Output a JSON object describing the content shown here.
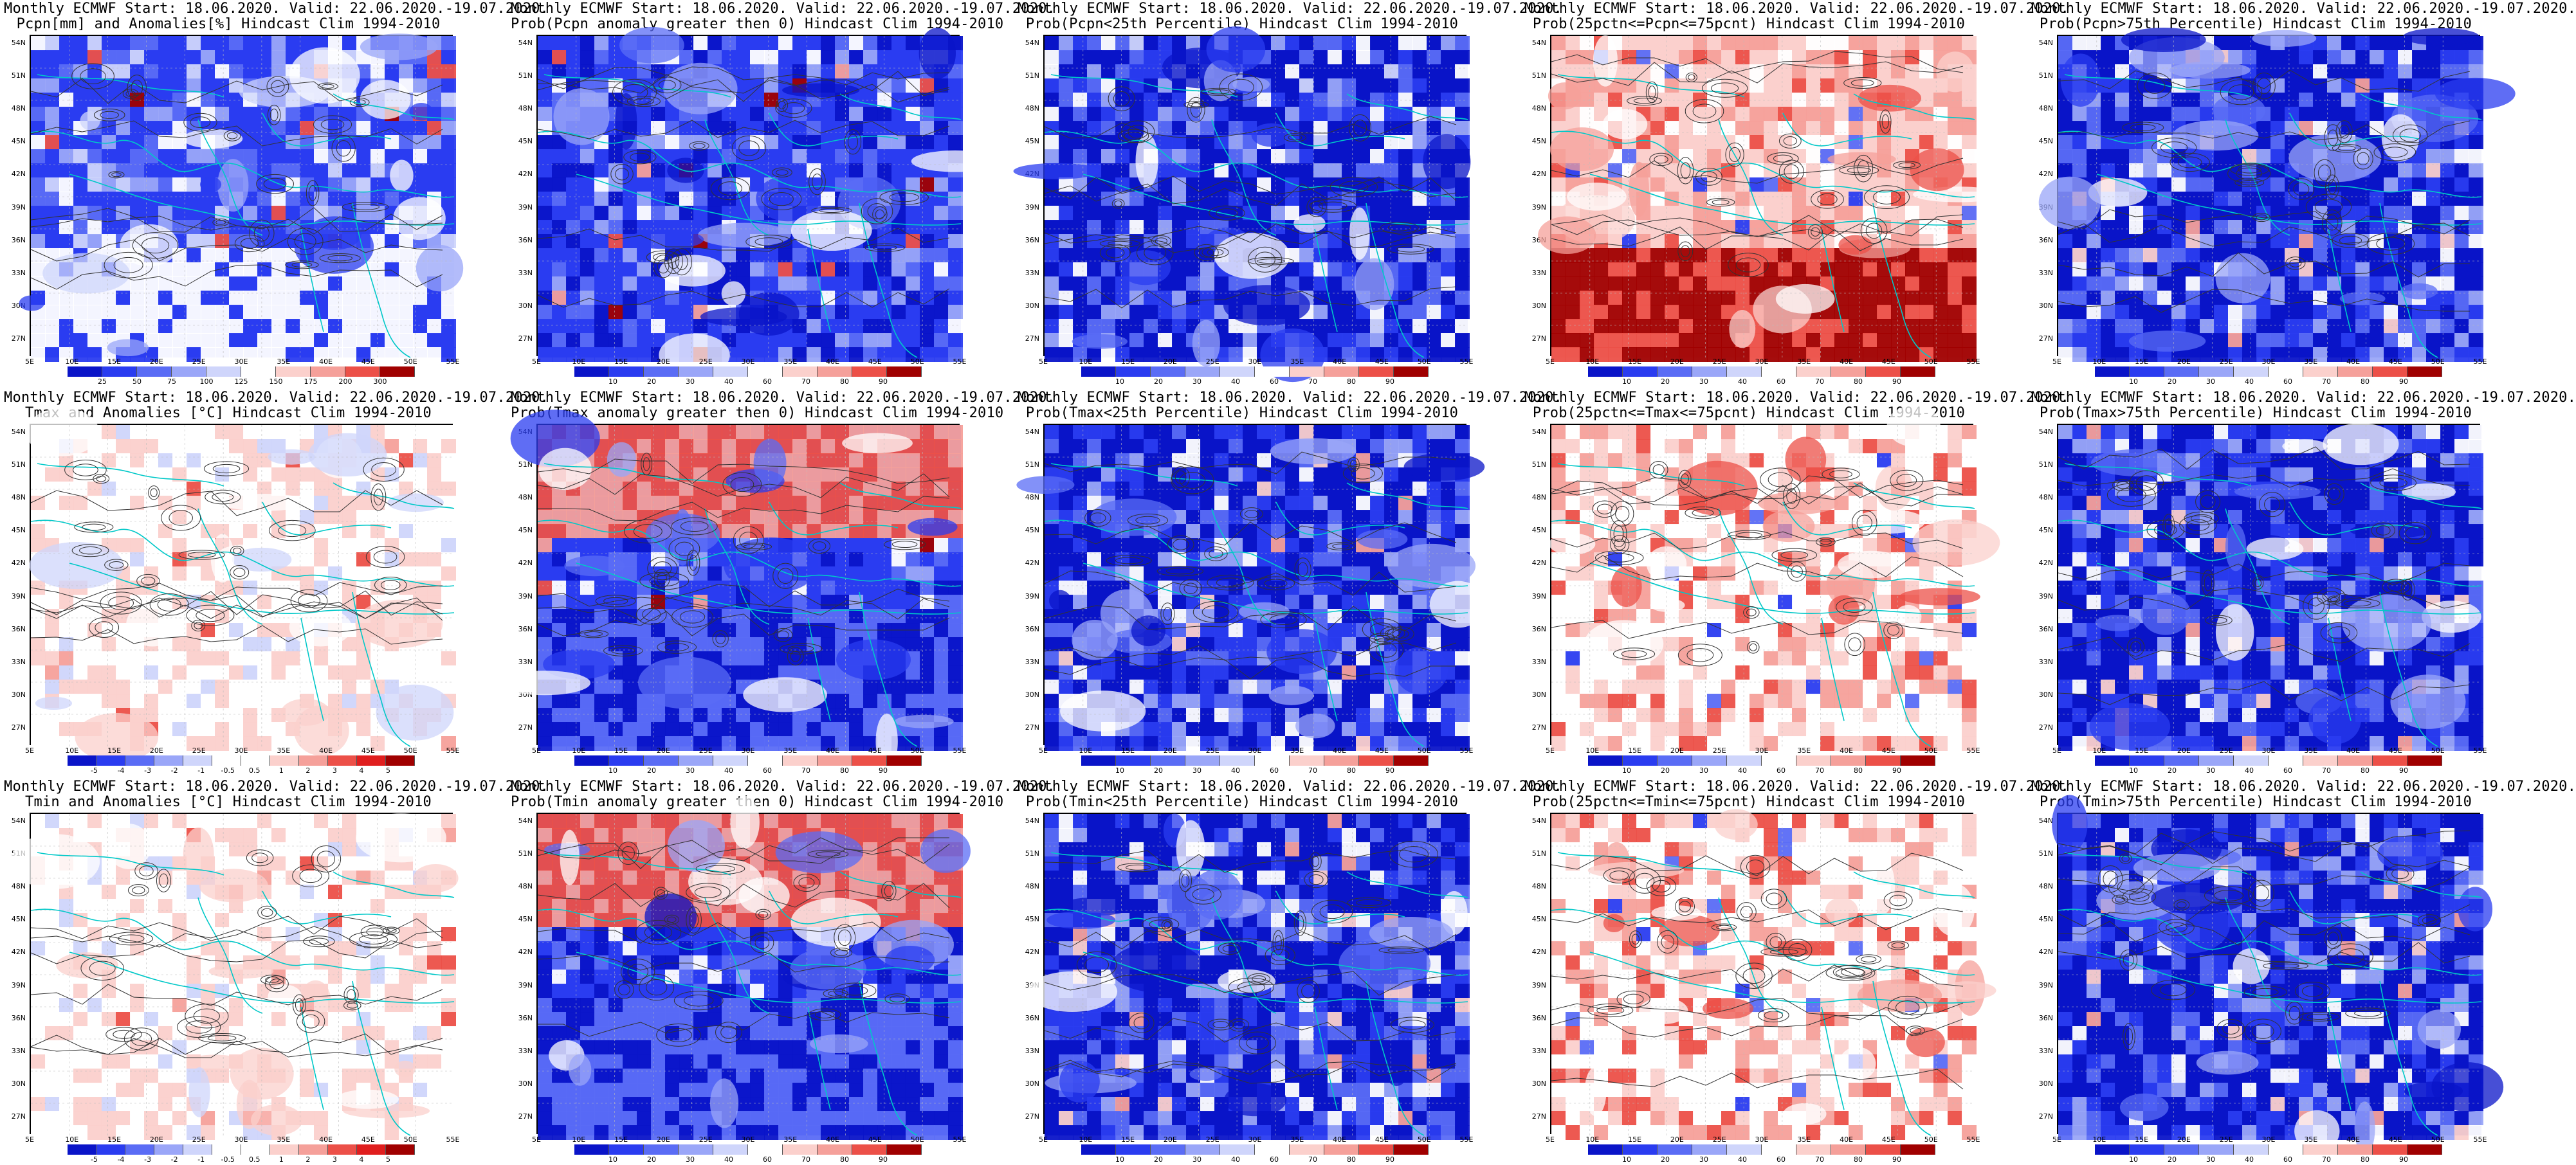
{
  "figure": {
    "lat_labels": [
      "54N",
      "51N",
      "48N",
      "45N",
      "42N",
      "39N",
      "36N",
      "33N",
      "30N",
      "27N"
    ],
    "lon_labels": [
      "5E",
      "10E",
      "15E",
      "20E",
      "25E",
      "30E",
      "35E",
      "40E",
      "45E",
      "50E",
      "55E"
    ],
    "colors": {
      "dark_blue": "#0a14c8",
      "blue": "#2a3cf0",
      "mid_blue": "#5a6cf5",
      "light_blue": "#9aa6f8",
      "pale_blue": "#cfd5fb",
      "white": "#ffffff",
      "pale_red": "#fbd0cc",
      "light_red": "#f5a09a",
      "red": "#ec5048",
      "mid_red": "#e01e1e",
      "dark_red": "#a00000",
      "coast": "#00c8c8",
      "contour": "#333333"
    },
    "panels": [
      {
        "title1": "Monthly ECMWF Start: 18.06.2020. Valid: 22.06.2020.-19.07.2020.",
        "title2": "Pcpn[mm] and Anomalies[%] Hindcast Clim 1994-2010",
        "scheme": "pcpn_anom",
        "colorbar_ticks": [
          "25",
          "50",
          "75",
          "100",
          "125",
          "150",
          "175",
          "200",
          "300"
        ]
      },
      {
        "title1": "Monthly ECMWF Start: 18.06.2020. Valid: 22.06.2020.-19.07.2020.",
        "title2": "Prob(Pcpn anomaly greater then 0) Hindcast Clim 1994-2010",
        "scheme": "prob_high",
        "colorbar_ticks": [
          "10",
          "20",
          "30",
          "40",
          "60",
          "70",
          "80",
          "90"
        ]
      },
      {
        "title1": "Monthly ECMWF Start: 18.06.2020. Valid: 22.06.2020.-19.07.2020.",
        "title2": "Prob(Pcpn<25th Percentile) Hindcast Clim 1994-2010",
        "scheme": "prob_mixed",
        "colorbar_ticks": [
          "10",
          "20",
          "30",
          "40",
          "60",
          "70",
          "80",
          "90"
        ]
      },
      {
        "title1": "Monthly ECMWF Start: 18.06.2020. Valid: 22.06.2020.-19.07.2020.",
        "title2": "Prob(25pctn<=Pcpn<=75pcnt) Hindcast Clim 1994-2010",
        "scheme": "prob_red",
        "colorbar_ticks": [
          "10",
          "20",
          "30",
          "40",
          "60",
          "70",
          "80",
          "90"
        ]
      },
      {
        "title1": "Monthly ECMWF Start: 18.06.2020. Valid: 22.06.2020.-19.07.2020.",
        "title2": "Prob(Pcpn>75th Percentile) Hindcast Clim 1994-2010",
        "scheme": "prob_blue",
        "colorbar_ticks": [
          "10",
          "20",
          "30",
          "40",
          "60",
          "70",
          "80",
          "90"
        ]
      },
      {
        "title1": "Monthly ECMWF Start: 18.06.2020. Valid: 22.06.2020.-19.07.2020.",
        "title2": "Tmax and Anomalies [°C] Hindcast Clim 1994-2010",
        "scheme": "temp_anom",
        "colorbar_ticks": [
          "-5",
          "-4",
          "-3",
          "-2",
          "-1",
          "-0.5",
          "0.5",
          "1",
          "2",
          "3",
          "4",
          "5"
        ]
      },
      {
        "title1": "Monthly ECMWF Start: 18.06.2020. Valid: 22.06.2020.-19.07.2020.",
        "title2": "Prob(Tmax anomaly greater then 0) Hindcast Clim 1994-2010",
        "scheme": "prob_high",
        "colorbar_ticks": [
          "10",
          "20",
          "30",
          "40",
          "60",
          "70",
          "80",
          "90"
        ]
      },
      {
        "title1": "Monthly ECMWF Start: 18.06.2020. Valid: 22.06.2020.-19.07.2020.",
        "title2": "Prob(Tmax<25th Percentile) Hindcast Clim 1994-2010",
        "scheme": "prob_blue",
        "colorbar_ticks": [
          "10",
          "20",
          "30",
          "40",
          "60",
          "70",
          "80",
          "90"
        ]
      },
      {
        "title1": "Monthly ECMWF Start: 18.06.2020. Valid: 22.06.2020.-19.07.2020.",
        "title2": "Prob(25pctn<=Tmax<=75pcnt) Hindcast Clim 1994-2010",
        "scheme": "prob_mixed_red",
        "colorbar_ticks": [
          "10",
          "20",
          "30",
          "40",
          "60",
          "70",
          "80",
          "90"
        ]
      },
      {
        "title1": "Monthly ECMWF Start: 18.06.2020. Valid: 22.06.2020.-19.07.2020.",
        "title2": "Prob(Tmax>75th Percentile) Hindcast Clim 1994-2010",
        "scheme": "prob_blue",
        "colorbar_ticks": [
          "10",
          "20",
          "30",
          "40",
          "60",
          "70",
          "80",
          "90"
        ]
      },
      {
        "title1": "Monthly ECMWF Start: 18.06.2020. Valid: 22.06.2020.-19.07.2020.",
        "title2": "Tmin and Anomalies [°C] Hindcast Clim 1994-2010",
        "scheme": "temp_anom",
        "colorbar_ticks": [
          "-5",
          "-4",
          "-3",
          "-2",
          "-1",
          "-0.5",
          "0.5",
          "1",
          "2",
          "3",
          "4",
          "5"
        ]
      },
      {
        "title1": "Monthly ECMWF Start: 18.06.2020. Valid: 22.06.2020.-19.07.2020.",
        "title2": "Prob(Tmin anomaly greater then 0) Hindcast Clim 1994-2010",
        "scheme": "prob_high",
        "colorbar_ticks": [
          "10",
          "20",
          "30",
          "40",
          "60",
          "70",
          "80",
          "90"
        ]
      },
      {
        "title1": "Monthly ECMWF Start: 18.06.2020. Valid: 22.06.2020.-19.07.2020.",
        "title2": "Prob(Tmin<25th Percentile) Hindcast Clim 1994-2010",
        "scheme": "prob_blue",
        "colorbar_ticks": [
          "10",
          "20",
          "30",
          "40",
          "60",
          "70",
          "80",
          "90"
        ]
      },
      {
        "title1": "Monthly ECMWF Start: 18.06.2020. Valid: 22.06.2020.-19.07.2020.",
        "title2": "Prob(25pctn<=Tmin<=75pcnt) Hindcast Clim 1994-2010",
        "scheme": "prob_mixed_red",
        "colorbar_ticks": [
          "10",
          "20",
          "30",
          "40",
          "60",
          "70",
          "80",
          "90"
        ]
      },
      {
        "title1": "Monthly ECMWF Start: 18.06.2020. Valid: 22.06.2020.-19.07.2020.",
        "title2": "Prob(Tmin>75th Percentile) Hindcast Clim 1994-2010",
        "scheme": "prob_blue",
        "colorbar_ticks": [
          "10",
          "20",
          "30",
          "40",
          "60",
          "70",
          "80",
          "90"
        ]
      }
    ]
  }
}
